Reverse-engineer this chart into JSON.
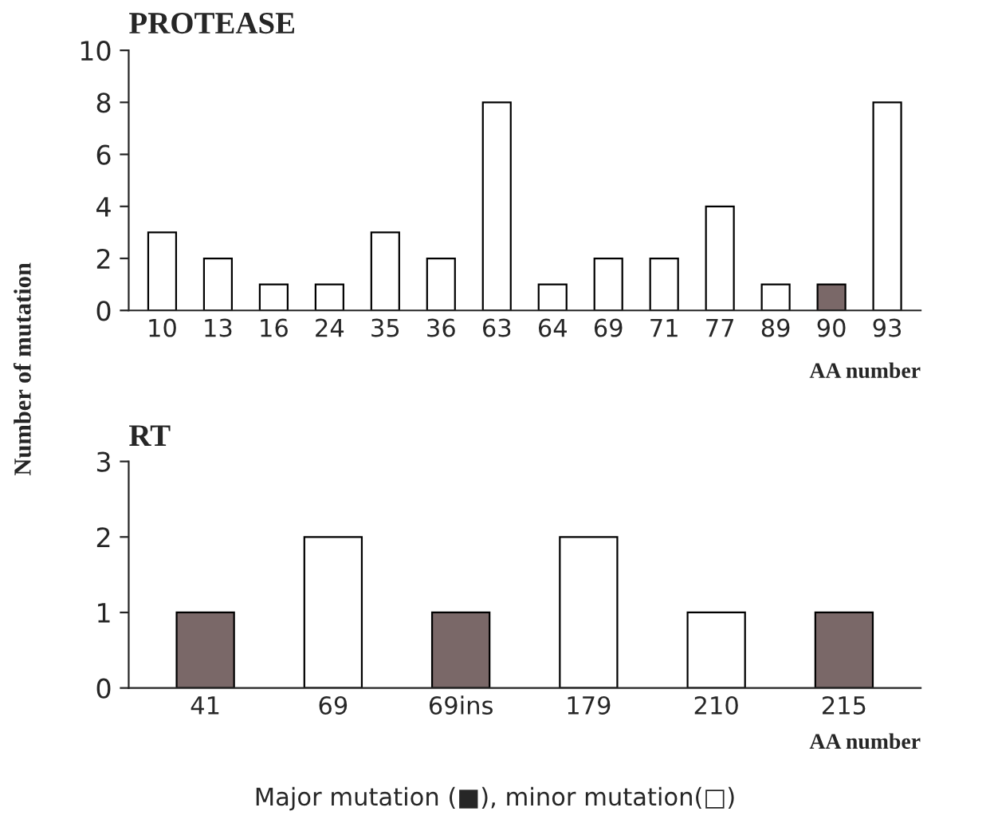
{
  "chart_data": [
    {
      "type": "bar",
      "title": "PROTEASE",
      "xlabel": "AA number",
      "ylabel": "Number of mutation",
      "categories": [
        "10",
        "13",
        "16",
        "24",
        "35",
        "36",
        "63",
        "64",
        "69",
        "71",
        "77",
        "89",
        "90",
        "93"
      ],
      "values": [
        3,
        2,
        1,
        1,
        3,
        2,
        8,
        1,
        2,
        2,
        4,
        1,
        1,
        8
      ],
      "colors": [
        "#ffffff",
        "#ffffff",
        "#ffffff",
        "#ffffff",
        "#ffffff",
        "#ffffff",
        "#ffffff",
        "#ffffff",
        "#ffffff",
        "#ffffff",
        "#ffffff",
        "#ffffff",
        "#7a6868",
        "#ffffff"
      ],
      "ylim": [
        0,
        10
      ],
      "yticks": [
        0,
        2,
        4,
        6,
        8,
        10
      ],
      "grid": false,
      "legend": false
    },
    {
      "type": "bar",
      "title": "RT",
      "xlabel": "AA number",
      "categories": [
        "41",
        "69",
        "69ins",
        "179",
        "210",
        "215"
      ],
      "values": [
        1,
        2,
        1,
        2,
        1,
        1
      ],
      "colors": [
        "#7a6868",
        "#ffffff",
        "#7a6868",
        "#ffffff",
        "#ffffff",
        "#7a6868"
      ],
      "ylim": [
        0,
        3
      ],
      "yticks": [
        0,
        1,
        2,
        3
      ],
      "grid": false,
      "legend": false,
      "annotations": [
        "Major mutation (■), minor mutation(□)"
      ]
    }
  ]
}
